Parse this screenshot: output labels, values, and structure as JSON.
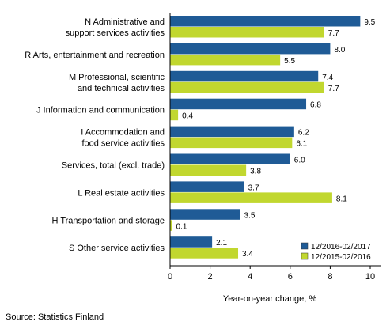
{
  "chart_data": {
    "type": "bar",
    "orientation": "horizontal",
    "categories": [
      [
        "N Administrative and",
        "support services activities"
      ],
      [
        "R Arts, entertainment and recreation"
      ],
      [
        "M Professional, scientific",
        "and technical activities"
      ],
      [
        "J Information and communication"
      ],
      [
        "I Accommodation and",
        "food service activities"
      ],
      [
        "Services, total (excl. trade)"
      ],
      [
        "L Real estate activities"
      ],
      [
        "H Transportation and storage"
      ],
      [
        "S Other service activities"
      ]
    ],
    "series": [
      {
        "name": "12/2016-02/2017",
        "color": "#1f5b96",
        "values": [
          9.5,
          8.0,
          7.4,
          6.8,
          6.2,
          6.0,
          3.7,
          3.5,
          2.1
        ]
      },
      {
        "name": "12/2015-02/2016",
        "color": "#c1d72f",
        "values": [
          7.7,
          5.5,
          7.7,
          0.4,
          6.1,
          3.8,
          8.1,
          0.1,
          3.4
        ]
      }
    ],
    "xlabel": "Year-on-year change, %",
    "xlim": [
      0,
      10
    ],
    "xticks": [
      "0",
      "2",
      "4",
      "6",
      "8",
      "10"
    ],
    "grid": false,
    "legend_position": "bottom-right",
    "value_decimals": 1
  },
  "source": "Source: Statistics Finland"
}
